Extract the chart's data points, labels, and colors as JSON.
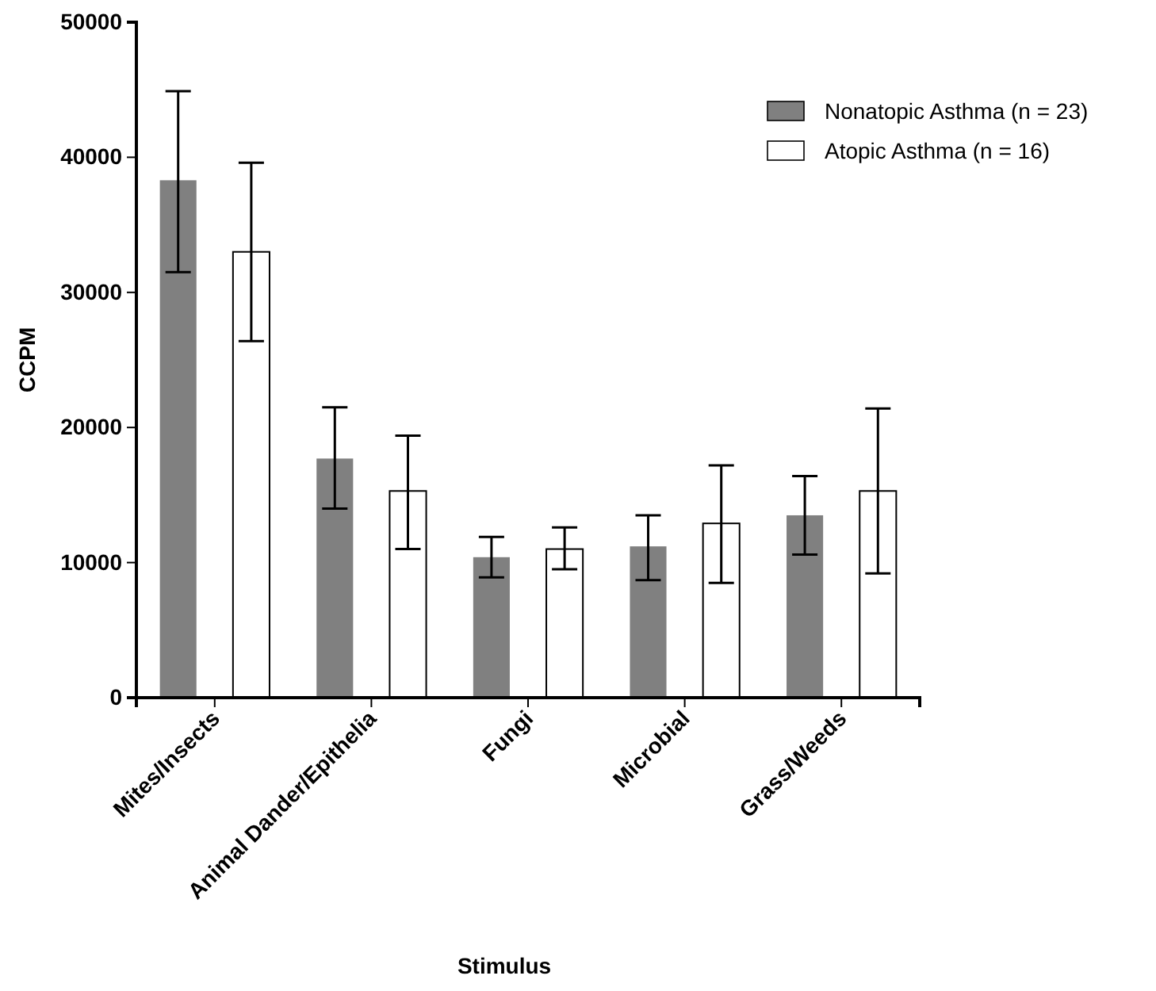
{
  "chart_data": {
    "type": "bar",
    "xlabel": "Stimulus",
    "ylabel": "CCPM",
    "categories": [
      "Mites/Insects",
      "Animal Dander/Epithelia",
      "Fungi",
      "Microbial",
      "Grass/Weeds"
    ],
    "series": [
      {
        "name": "Nonatopic Asthma (n = 23)",
        "color": "#808080",
        "values": [
          38300,
          17700,
          10400,
          11200,
          13500
        ],
        "errors": [
          [
            31500,
            44900
          ],
          [
            14000,
            21500
          ],
          [
            8900,
            11900
          ],
          [
            8700,
            13500
          ],
          [
            10600,
            16400
          ]
        ]
      },
      {
        "name": "Atopic Asthma (n = 16)",
        "color": "#ffffff",
        "values": [
          33000,
          15300,
          11000,
          12900,
          15300
        ],
        "errors": [
          [
            26400,
            39600
          ],
          [
            11000,
            19400
          ],
          [
            9500,
            12600
          ],
          [
            8500,
            17200
          ],
          [
            9200,
            21400
          ]
        ]
      }
    ],
    "ylim": [
      0,
      50000
    ],
    "yticks": [
      0,
      10000,
      20000,
      30000,
      40000,
      50000
    ],
    "grid": false,
    "legend": "top right"
  }
}
